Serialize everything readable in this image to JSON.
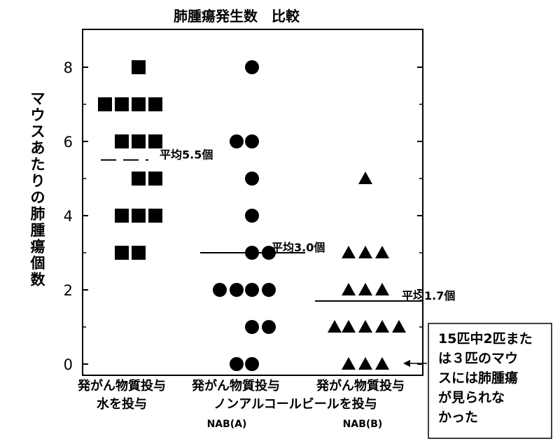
{
  "chart_data": {
    "type": "scatter",
    "title": "肺腫瘍発生数　比較",
    "ylabel": "マウスあたりの肺腫瘍個数",
    "ylim": [
      0,
      9
    ],
    "yticks": [
      "0",
      "2",
      "4",
      "6",
      "8"
    ],
    "groups": [
      {
        "label_lines": [
          "発がん物質投与",
          "水を投与"
        ],
        "sub": "",
        "marker": "square",
        "values": [
          8,
          7,
          7,
          7,
          7,
          6,
          6,
          6,
          5,
          5,
          4,
          4,
          4,
          3,
          3
        ],
        "mean": 5.5,
        "mean_label": "平均5.5個"
      },
      {
        "label_lines": [
          "発がん物質投与"
        ],
        "sub": "NAB(A)",
        "marker": "circle",
        "values": [
          8,
          6,
          6,
          5,
          4,
          3,
          3,
          2,
          2,
          2,
          2,
          1,
          1,
          0,
          0
        ],
        "mean": 3.0,
        "mean_label": "平均3.0個"
      },
      {
        "label_lines": [
          "発がん物質投与"
        ],
        "sub": "NAB(B)",
        "marker": "triangle",
        "values": [
          5,
          3,
          3,
          3,
          2,
          2,
          2,
          1,
          1,
          1,
          1,
          1,
          0,
          0,
          0
        ],
        "mean": 1.7,
        "mean_label": "平均1.7個"
      }
    ],
    "shared_label": "ノンアルコールビールを投与",
    "annotation_lines": [
      "15匹中2匹また",
      "は３匹のマウ",
      "スには肺腫瘍",
      "が見られな",
      "かった"
    ]
  }
}
